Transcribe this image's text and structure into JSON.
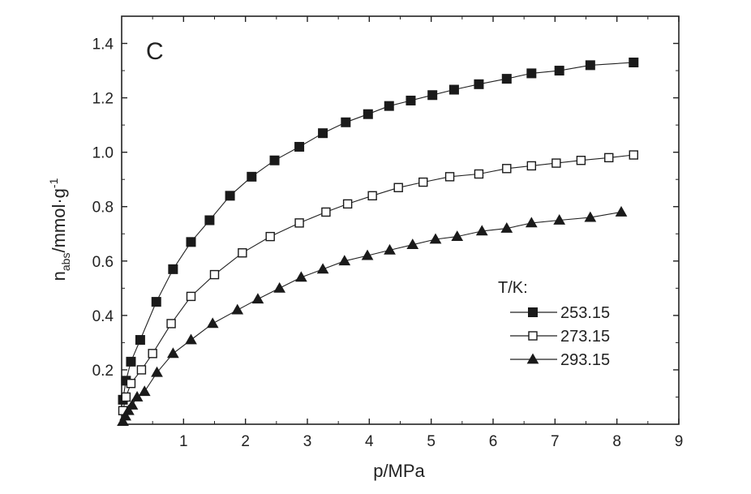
{
  "chart_data": {
    "type": "line",
    "panel_label": "C",
    "xlabel": "p/MPa",
    "ylabel": {
      "main": "n",
      "subscript": "abs",
      "unit": "/mmol·g",
      "superscript": "-1"
    },
    "xlim": [
      0,
      9
    ],
    "ylim": [
      0,
      1.5
    ],
    "xticks": [
      1,
      2,
      3,
      4,
      5,
      6,
      7,
      8,
      9
    ],
    "yticks": [
      0.2,
      0.4,
      0.6,
      0.8,
      1.0,
      1.2,
      1.4
    ],
    "ytick_labels": [
      "0.2",
      "0.4",
      "0.6",
      "0.8",
      "1.0",
      "1.2",
      "1.4"
    ],
    "legend": {
      "title": "T/K:",
      "position": "lower-right"
    },
    "series": [
      {
        "name": "253.15",
        "marker": "square-filled",
        "points": [
          [
            0.02,
            0.09
          ],
          [
            0.07,
            0.16
          ],
          [
            0.15,
            0.23
          ],
          [
            0.3,
            0.31
          ],
          [
            0.56,
            0.45
          ],
          [
            0.83,
            0.57
          ],
          [
            1.12,
            0.67
          ],
          [
            1.42,
            0.75
          ],
          [
            1.75,
            0.84
          ],
          [
            2.1,
            0.91
          ],
          [
            2.47,
            0.97
          ],
          [
            2.87,
            1.02
          ],
          [
            3.25,
            1.07
          ],
          [
            3.62,
            1.11
          ],
          [
            3.98,
            1.14
          ],
          [
            4.32,
            1.17
          ],
          [
            4.67,
            1.19
          ],
          [
            5.02,
            1.21
          ],
          [
            5.37,
            1.23
          ],
          [
            5.77,
            1.25
          ],
          [
            6.22,
            1.27
          ],
          [
            6.62,
            1.29
          ],
          [
            7.07,
            1.3
          ],
          [
            7.57,
            1.32
          ],
          [
            8.27,
            1.33
          ]
        ]
      },
      {
        "name": "273.15",
        "marker": "square-open",
        "points": [
          [
            0.02,
            0.05
          ],
          [
            0.07,
            0.1
          ],
          [
            0.15,
            0.15
          ],
          [
            0.32,
            0.2
          ],
          [
            0.5,
            0.26
          ],
          [
            0.8,
            0.37
          ],
          [
            1.12,
            0.47
          ],
          [
            1.5,
            0.55
          ],
          [
            1.95,
            0.63
          ],
          [
            2.4,
            0.69
          ],
          [
            2.87,
            0.74
          ],
          [
            3.3,
            0.78
          ],
          [
            3.65,
            0.81
          ],
          [
            4.05,
            0.84
          ],
          [
            4.47,
            0.87
          ],
          [
            4.87,
            0.89
          ],
          [
            5.3,
            0.91
          ],
          [
            5.77,
            0.92
          ],
          [
            6.22,
            0.94
          ],
          [
            6.62,
            0.95
          ],
          [
            7.02,
            0.96
          ],
          [
            7.42,
            0.97
          ],
          [
            7.87,
            0.98
          ],
          [
            8.27,
            0.99
          ]
        ]
      },
      {
        "name": "293.15",
        "marker": "triangle-filled",
        "points": [
          [
            0.02,
            0.01
          ],
          [
            0.06,
            0.03
          ],
          [
            0.11,
            0.05
          ],
          [
            0.17,
            0.07
          ],
          [
            0.25,
            0.1
          ],
          [
            0.37,
            0.12
          ],
          [
            0.57,
            0.19
          ],
          [
            0.83,
            0.26
          ],
          [
            1.12,
            0.31
          ],
          [
            1.47,
            0.37
          ],
          [
            1.87,
            0.42
          ],
          [
            2.2,
            0.46
          ],
          [
            2.55,
            0.5
          ],
          [
            2.9,
            0.54
          ],
          [
            3.25,
            0.57
          ],
          [
            3.6,
            0.6
          ],
          [
            3.97,
            0.62
          ],
          [
            4.33,
            0.64
          ],
          [
            4.7,
            0.66
          ],
          [
            5.07,
            0.68
          ],
          [
            5.42,
            0.69
          ],
          [
            5.82,
            0.71
          ],
          [
            6.22,
            0.72
          ],
          [
            6.62,
            0.74
          ],
          [
            7.07,
            0.75
          ],
          [
            7.57,
            0.76
          ],
          [
            8.07,
            0.78
          ]
        ]
      }
    ]
  }
}
